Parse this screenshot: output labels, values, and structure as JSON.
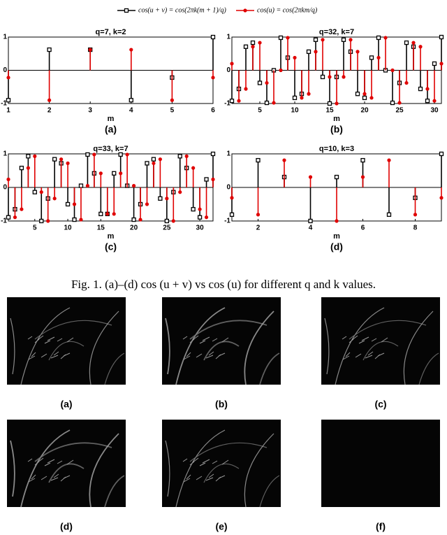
{
  "legend": [
    "cos(u + v) = cos(2πk(m + 1)/q)",
    "cos(u) = cos(2πkm/q)"
  ],
  "chart_data": [
    {
      "type": "stem",
      "title": "q=7, k=2",
      "x_label": "m",
      "label": "(a)",
      "xlim": [
        1,
        6
      ],
      "xticks": [
        1,
        2,
        3,
        4,
        5,
        6
      ],
      "ylim": [
        -1,
        1
      ],
      "yticks": [
        -1,
        0,
        1
      ],
      "x": [
        1,
        2,
        3,
        4,
        5,
        6
      ],
      "series": [
        {
          "color": "#000000",
          "marker": "square",
          "values": [
            -0.9,
            0.62,
            0.62,
            -0.9,
            -0.22,
            1
          ]
        },
        {
          "color": "#e00000",
          "marker": "circle",
          "values": [
            -0.22,
            -0.9,
            0.62,
            0.62,
            -0.9,
            -0.22
          ]
        }
      ]
    },
    {
      "type": "stem",
      "title": "q=32, k=7",
      "x_label": "m",
      "label": "(b)",
      "xlim": [
        1,
        31
      ],
      "xticks": [
        5,
        10,
        15,
        20,
        25,
        30
      ],
      "ylim": [
        -1,
        1
      ],
      "yticks": [
        -1,
        0,
        1
      ],
      "x": [
        1,
        2,
        3,
        4,
        5,
        6,
        7,
        8,
        9,
        10,
        11,
        12,
        13,
        14,
        15,
        16,
        17,
        18,
        19,
        20,
        21,
        22,
        23,
        24,
        25,
        26,
        27,
        28,
        29,
        30,
        31
      ],
      "series": [
        {
          "color": "#000000",
          "marker": "square",
          "values": [
            -0.92,
            -0.56,
            0.71,
            0.83,
            -0.38,
            -0.98,
            0,
            0.98,
            0.38,
            -0.83,
            -0.71,
            0.56,
            0.92,
            -0.2,
            -1,
            -0.2,
            0.92,
            0.56,
            -0.71,
            -0.83,
            0.38,
            0.98,
            0,
            -0.98,
            -0.38,
            0.83,
            0.71,
            -0.56,
            -0.92,
            0.2,
            1
          ]
        },
        {
          "color": "#e00000",
          "marker": "circle",
          "values": [
            0.2,
            -0.92,
            -0.56,
            0.71,
            0.83,
            -0.38,
            -0.98,
            0,
            0.98,
            0.38,
            -0.83,
            -0.71,
            0.56,
            0.92,
            -0.2,
            -1,
            -0.2,
            0.92,
            0.56,
            -0.71,
            -0.83,
            0.38,
            0.98,
            0,
            -0.98,
            -0.38,
            0.83,
            0.71,
            -0.56,
            -0.92,
            0.2
          ]
        }
      ]
    },
    {
      "type": "stem",
      "title": "q=33, k=7",
      "x_label": "m",
      "label": "(c)",
      "xlim": [
        1,
        32
      ],
      "xticks": [
        5,
        10,
        15,
        20,
        25,
        30
      ],
      "ylim": [
        -1,
        1
      ],
      "yticks": [
        -1,
        0,
        1
      ],
      "x": [
        1,
        2,
        3,
        4,
        5,
        6,
        7,
        8,
        9,
        10,
        11,
        12,
        13,
        14,
        15,
        16,
        17,
        18,
        19,
        20,
        21,
        22,
        23,
        24,
        25,
        26,
        27,
        28,
        29,
        30,
        31,
        32
      ],
      "series": [
        {
          "color": "#000000",
          "marker": "square",
          "values": [
            -0.89,
            -0.65,
            0.58,
            0.93,
            -0.14,
            -1,
            -0.33,
            0.84,
            0.72,
            -0.5,
            -0.96,
            0.05,
            0.98,
            0.42,
            -0.79,
            -0.79,
            0.42,
            0.98,
            0.05,
            -0.96,
            -0.5,
            0.72,
            0.84,
            -0.33,
            -1,
            -0.14,
            0.93,
            0.58,
            -0.65,
            -0.89,
            0.24,
            1
          ]
        },
        {
          "color": "#e00000",
          "marker": "circle",
          "values": [
            0.24,
            -0.89,
            -0.65,
            0.58,
            0.93,
            -0.14,
            -1,
            -0.33,
            0.84,
            0.72,
            -0.5,
            -0.96,
            0.05,
            0.98,
            0.42,
            -0.79,
            -0.79,
            0.42,
            0.98,
            0.05,
            -0.96,
            -0.5,
            0.72,
            0.84,
            -0.33,
            -1,
            -0.14,
            0.93,
            0.58,
            -0.65,
            -0.89,
            0.24
          ]
        }
      ]
    },
    {
      "type": "stem",
      "title": "q=10, k=3",
      "x_label": "m",
      "label": "(d)",
      "xlim": [
        1,
        9
      ],
      "xticks": [
        2,
        4,
        6,
        8
      ],
      "ylim": [
        -1,
        1
      ],
      "yticks": [
        -1,
        0,
        1
      ],
      "x": [
        1,
        2,
        3,
        4,
        5,
        6,
        7,
        8,
        9
      ],
      "series": [
        {
          "color": "#000000",
          "marker": "square",
          "values": [
            -0.81,
            0.81,
            0.31,
            -1,
            0.31,
            0.81,
            -0.81,
            -0.31,
            1
          ]
        },
        {
          "color": "#e00000",
          "marker": "circle",
          "values": [
            -0.31,
            -0.81,
            0.81,
            0.31,
            -1,
            0.31,
            0.81,
            -0.81,
            -0.31
          ]
        }
      ]
    }
  ],
  "caption": "Fig. 1.    (a)–(d) cos (u + v) vs cos (u) for different q and k values.",
  "images": [
    {
      "label": "(a)"
    },
    {
      "label": "(b)"
    },
    {
      "label": "(c)"
    },
    {
      "label": "(d)"
    },
    {
      "label": "(e)"
    },
    {
      "label": "(f)"
    }
  ]
}
